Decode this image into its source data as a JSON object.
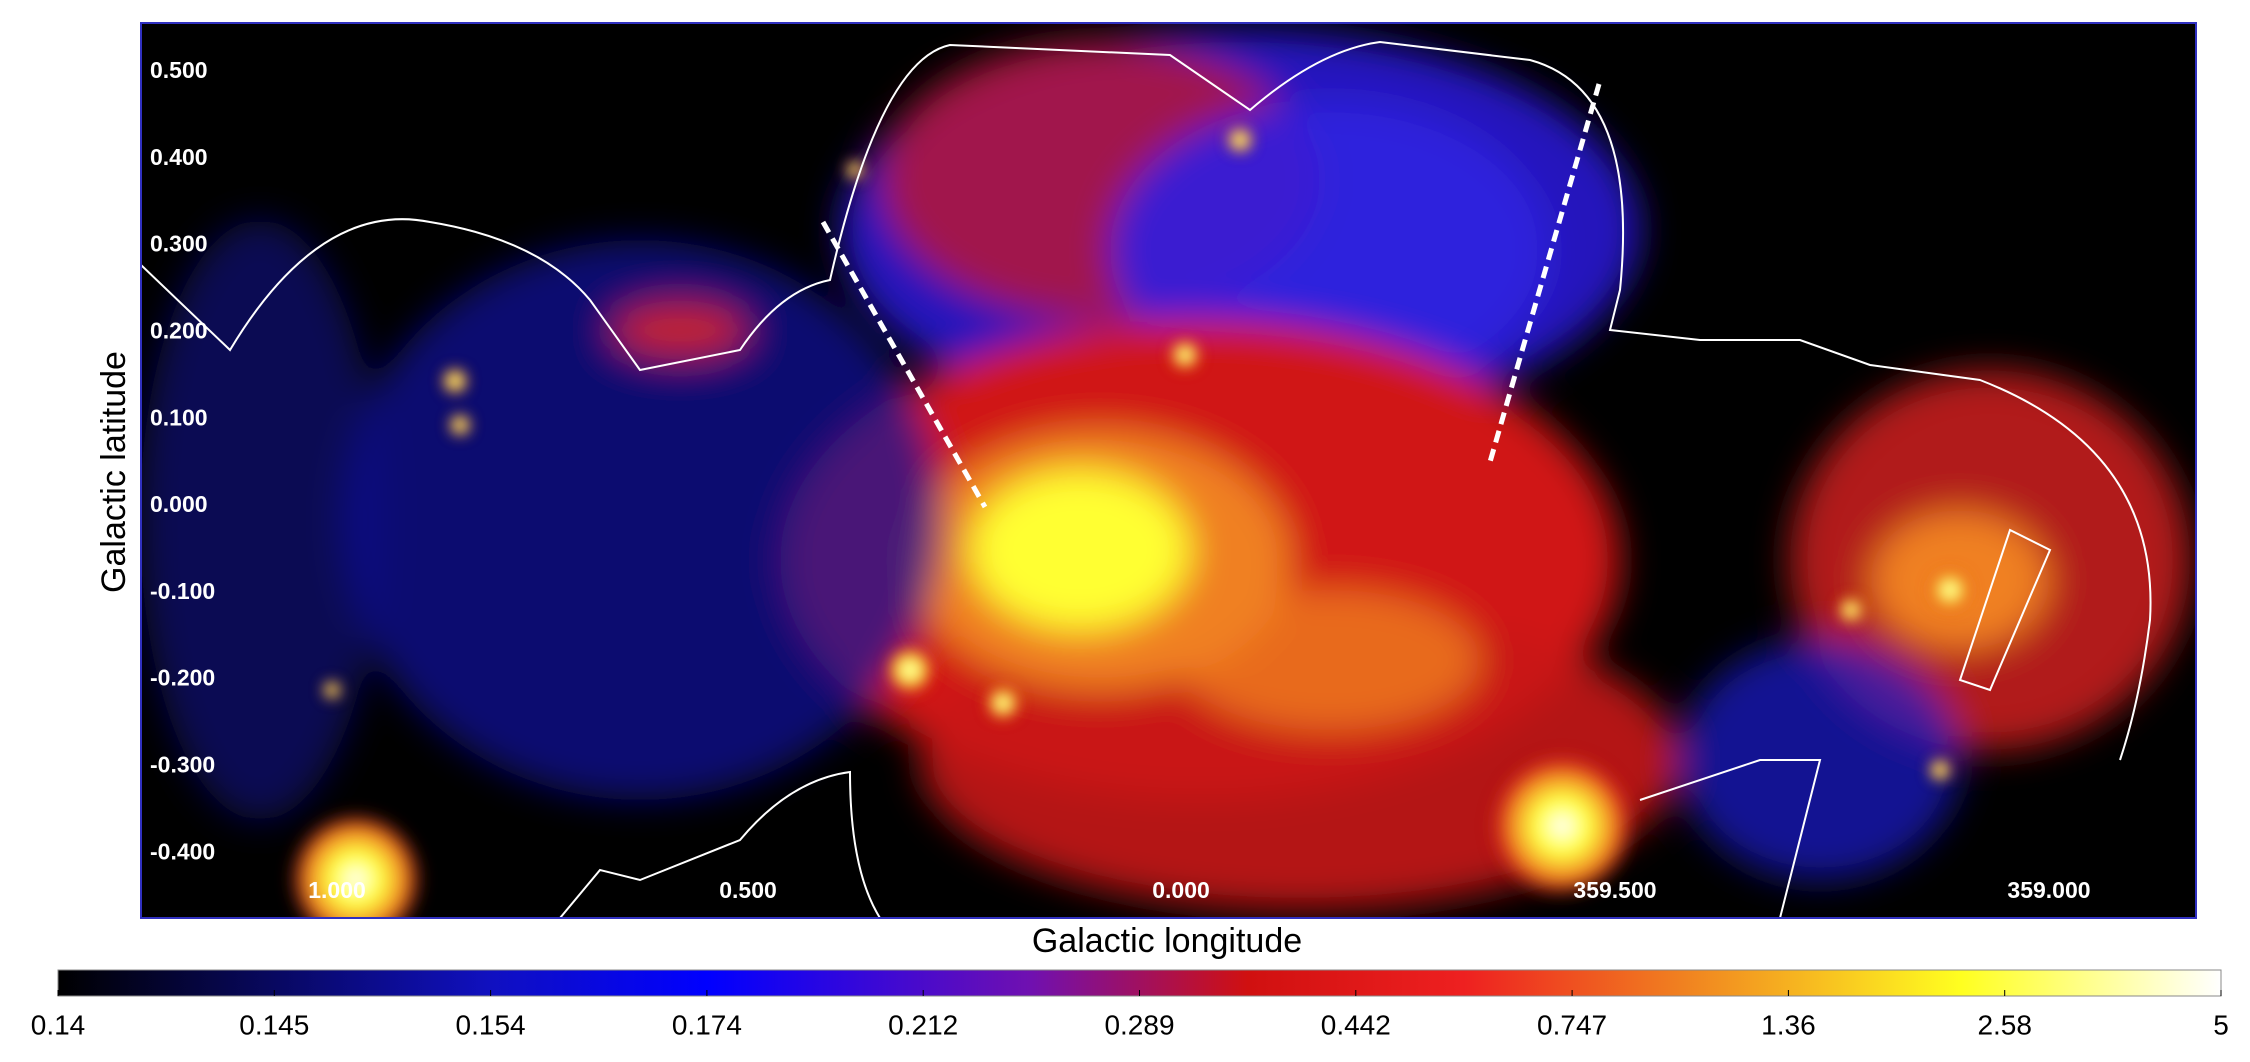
{
  "axes": {
    "xlabel": "Galactic longitude",
    "ylabel": "Galactic latitude",
    "xticks": [
      "1.000",
      "0.500",
      "0.000",
      "359.500",
      "359.000"
    ],
    "yticks": [
      "0.500",
      "0.400",
      "0.300",
      "0.200",
      "0.100",
      "0.000",
      "-0.100",
      "-0.200",
      "-0.300",
      "-0.400"
    ]
  },
  "colorbar": {
    "ticks": [
      0.14,
      0.145,
      0.154,
      0.174,
      0.212,
      0.289,
      0.442,
      0.747,
      1.36,
      2.58,
      5
    ]
  }
}
